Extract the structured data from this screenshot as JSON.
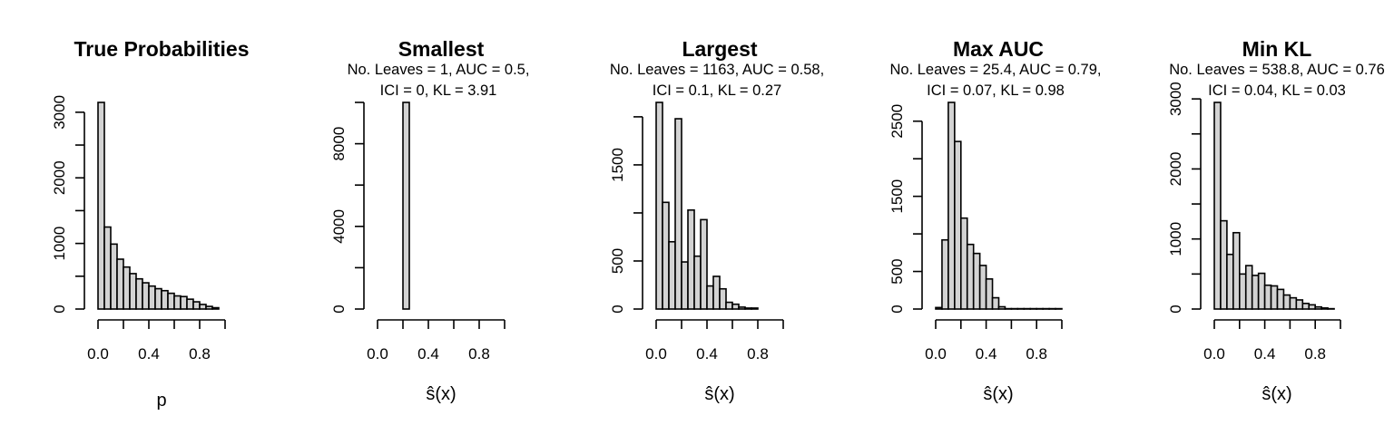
{
  "chart_data": [
    {
      "type": "bar",
      "title": "True Probabilities",
      "subtitle": [],
      "xlabel": "p",
      "x_bin_start": 0.0,
      "x_bin_width": 0.05,
      "values": [
        3150,
        1250,
        990,
        760,
        640,
        540,
        460,
        400,
        350,
        310,
        280,
        240,
        200,
        190,
        150,
        110,
        70,
        40,
        20
      ],
      "xlim": [
        0,
        1
      ],
      "ylim": [
        0,
        3150
      ],
      "xticks": [
        0.0,
        0.2,
        0.4,
        0.6,
        0.8,
        1.0
      ],
      "xtick_labels": [
        "0.0",
        "",
        "0.4",
        "",
        "0.8",
        ""
      ],
      "yticks": [
        0,
        500,
        1000,
        1500,
        2000,
        2500,
        3000
      ],
      "ytick_labels": [
        "0",
        "",
        "1000",
        "",
        "2000",
        "",
        "3000"
      ]
    },
    {
      "type": "bar",
      "title": "Smallest",
      "subtitle": [
        "No. Leaves = 1, AUC = 0.5,",
        "ICI = 0, KL = 3.91"
      ],
      "xlabel": "ŝ(x)",
      "x_bin_start": 0.0,
      "x_bin_width": 0.05,
      "values": [
        0,
        0,
        0,
        0,
        10000,
        0,
        0,
        0,
        0,
        0,
        0,
        0,
        0,
        0,
        0,
        0,
        0,
        0,
        0,
        0
      ],
      "xlim": [
        0,
        1
      ],
      "ylim": [
        0,
        10000
      ],
      "xticks": [
        0.0,
        0.2,
        0.4,
        0.6,
        0.8,
        1.0
      ],
      "xtick_labels": [
        "0.0",
        "",
        "0.4",
        "",
        "0.8",
        ""
      ],
      "yticks": [
        0,
        2000,
        4000,
        6000,
        8000,
        10000
      ],
      "ytick_labels": [
        "0",
        "",
        "4000",
        "",
        "8000",
        ""
      ]
    },
    {
      "type": "bar",
      "title": "Largest",
      "subtitle": [
        "No. Leaves = 1163, AUC = 0.58,",
        "ICI = 0.1, KL = 0.27"
      ],
      "xlabel": "ŝ(x)",
      "x_bin_start": 0.0,
      "x_bin_width": 0.05,
      "values": [
        2150,
        1110,
        700,
        1980,
        490,
        1030,
        550,
        930,
        240,
        340,
        210,
        70,
        50,
        20,
        10,
        10
      ],
      "xlim": [
        0,
        1
      ],
      "ylim": [
        0,
        2150
      ],
      "xticks": [
        0.0,
        0.2,
        0.4,
        0.6,
        0.8,
        1.0
      ],
      "xtick_labels": [
        "0.0",
        "",
        "0.4",
        "",
        "0.8",
        ""
      ],
      "yticks": [
        0,
        500,
        1000,
        1500,
        2000
      ],
      "ytick_labels": [
        "0",
        "500",
        "",
        "1500",
        ""
      ]
    },
    {
      "type": "bar",
      "title": "Max AUC",
      "subtitle": [
        "No. Leaves = 25.4, AUC = 0.79,",
        "ICI = 0.07, KL = 0.98"
      ],
      "xlabel": "ŝ(x)",
      "x_bin_start": 0.0,
      "x_bin_width": 0.05,
      "values": [
        20,
        920,
        2750,
        2230,
        1210,
        860,
        740,
        580,
        400,
        150,
        30,
        5,
        5,
        5,
        5,
        5,
        5,
        5,
        5,
        5
      ],
      "xlim": [
        0,
        1
      ],
      "ylim": [
        0,
        2750
      ],
      "xticks": [
        0.0,
        0.2,
        0.4,
        0.6,
        0.8,
        1.0
      ],
      "xtick_labels": [
        "0.0",
        "",
        "0.4",
        "",
        "0.8",
        ""
      ],
      "yticks": [
        0,
        500,
        1000,
        1500,
        2000,
        2500
      ],
      "ytick_labels": [
        "0",
        "500",
        "",
        "1500",
        "",
        "2500"
      ]
    },
    {
      "type": "bar",
      "title": "Min KL",
      "subtitle": [
        "No. Leaves = 538.8, AUC = 0.76",
        "ICI = 0.04, KL = 0.03"
      ],
      "xlabel": "ŝ(x)",
      "x_bin_start": 0.0,
      "x_bin_width": 0.05,
      "values": [
        2950,
        1260,
        780,
        1090,
        500,
        620,
        480,
        510,
        340,
        330,
        280,
        200,
        160,
        130,
        80,
        60,
        30,
        15,
        5
      ],
      "xlim": [
        0,
        1
      ],
      "ylim": [
        0,
        2950
      ],
      "xticks": [
        0.0,
        0.2,
        0.4,
        0.6,
        0.8,
        1.0
      ],
      "xtick_labels": [
        "0.0",
        "",
        "0.4",
        "",
        "0.8",
        ""
      ],
      "yticks": [
        0,
        500,
        1000,
        1500,
        2000,
        2500,
        3000
      ],
      "ytick_labels": [
        "0",
        "",
        "1000",
        "",
        "2000",
        "",
        "3000"
      ]
    }
  ]
}
